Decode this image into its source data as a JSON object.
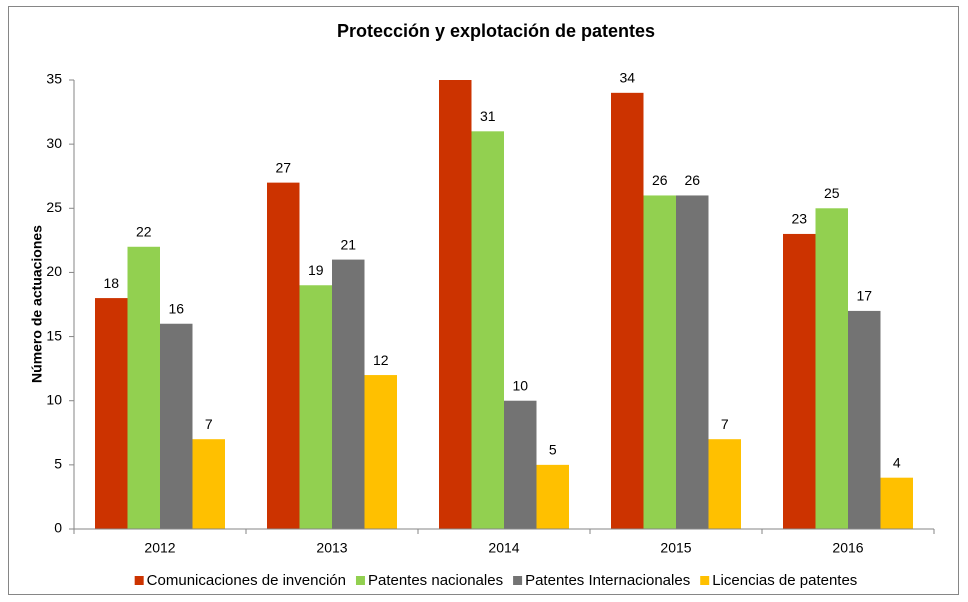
{
  "chart_data": {
    "type": "bar",
    "title": "Protección y explotación de patentes",
    "y_label": "Número de actuaciones",
    "categories": [
      "2012",
      "2013",
      "2014",
      "2015",
      "2016"
    ],
    "series": [
      {
        "name": "Comunicaciones de invención",
        "color": "#cc3300",
        "values": [
          18,
          27,
          35,
          34,
          23
        ]
      },
      {
        "name": "Patentes nacionales",
        "color": "#92d050",
        "values": [
          22,
          19,
          31,
          26,
          25
        ]
      },
      {
        "name": "Patentes Internacionales",
        "color": "#737373",
        "values": [
          16,
          21,
          10,
          26,
          17
        ]
      },
      {
        "name": "Licencias de patentes",
        "color": "#ffc000",
        "values": [
          7,
          12,
          5,
          7,
          4
        ]
      }
    ],
    "ylim": [
      0,
      35
    ],
    "yticks": [
      0,
      5,
      10,
      15,
      20,
      25,
      30,
      35
    ],
    "grid": false,
    "legend": "bottom"
  }
}
